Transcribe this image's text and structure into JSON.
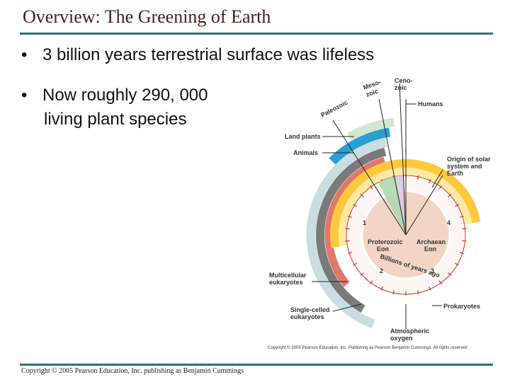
{
  "header": {
    "title": "Overview: The Greening of Earth"
  },
  "bullets": [
    {
      "marker": "•",
      "text": "3 billion years terrestrial surface was lifeless"
    },
    {
      "marker": "•",
      "lines": [
        "Now roughly 290, 000",
        "living plant species"
      ]
    }
  ],
  "diagram": {
    "eras": {
      "cenozoic": [
        "Ceno-",
        "zoic"
      ],
      "mesozoic": [
        "Meso-",
        "zoic"
      ],
      "paleozoic": "Paleozoic"
    },
    "events": {
      "humans": "Humans",
      "land_plants": "Land plants",
      "animals": "Animals",
      "origin": [
        "Origin of solar",
        "system and",
        "Earth"
      ],
      "multicellular": [
        "Multicellular",
        "eukaryotes"
      ],
      "single_celled": [
        "Single-celled",
        "eukaryotes"
      ],
      "prokaryotes": "Prokaryotes",
      "oxygen": [
        "Atmospheric",
        "oxygen"
      ]
    },
    "eons": {
      "proterozoic": [
        "Proterozoic",
        "Eon"
      ],
      "archaean": [
        "Archaean",
        "Eon"
      ]
    },
    "clock_caption": "Billions of years ago",
    "clock_numbers": [
      "1",
      "2",
      "3",
      "4"
    ],
    "copyright": "Copyright © 2005 Pearson Education, Inc. Publishing as Pearson Benjamin Cummings. All rights reserved"
  },
  "footer": {
    "copyright": "Copyright © 2005 Pearson Education, Inc. publishing as Benjamin Cummings"
  }
}
